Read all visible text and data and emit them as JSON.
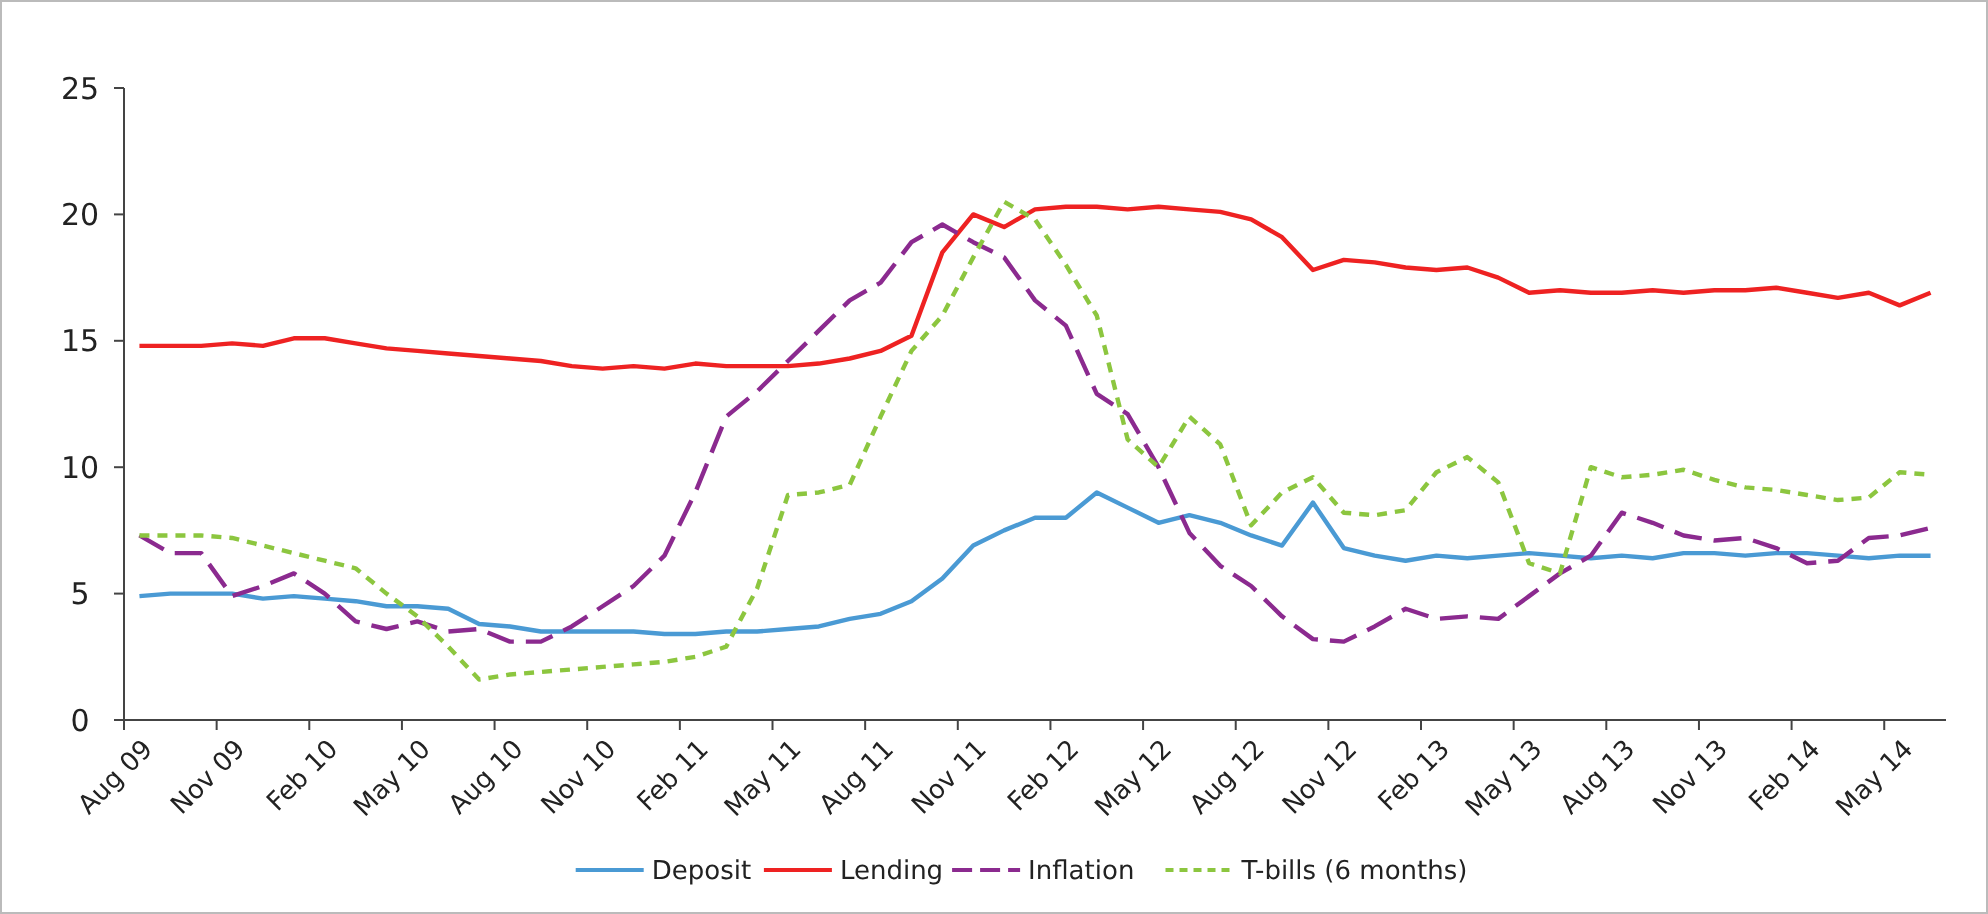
{
  "chart_data": {
    "type": "line",
    "categories": [
      "Aug 09",
      null,
      null,
      "Nov 09",
      null,
      null,
      "Feb 10",
      null,
      null,
      "May 10",
      null,
      null,
      "Aug 10",
      null,
      null,
      "Nov 10",
      null,
      null,
      "Feb 11",
      null,
      null,
      "May 11",
      null,
      null,
      "Aug 11",
      null,
      null,
      "Nov 11",
      null,
      null,
      "Feb 12",
      null,
      null,
      "May 12",
      null,
      null,
      "Aug 12",
      null,
      null,
      "Nov 12",
      null,
      null,
      "Feb 13",
      null,
      null,
      "May 13",
      null,
      null,
      "Aug 13",
      null,
      null,
      "Nov 13",
      null,
      null,
      "Feb 14",
      null,
      null,
      "May 14",
      null
    ],
    "series": [
      {
        "name": "Deposit",
        "color": "#4a9ad4",
        "line_style": "solid",
        "values": [
          4.9,
          5.0,
          5.0,
          5.0,
          4.8,
          4.9,
          4.8,
          4.7,
          4.5,
          4.5,
          4.4,
          3.8,
          3.7,
          3.5,
          3.5,
          3.5,
          3.5,
          3.4,
          3.4,
          3.5,
          3.5,
          3.6,
          3.7,
          4.0,
          4.2,
          4.7,
          5.6,
          6.9,
          7.5,
          8.0,
          8.0,
          9.0,
          8.4,
          7.8,
          8.1,
          7.8,
          7.3,
          6.9,
          8.6,
          6.8,
          6.5,
          6.3,
          6.5,
          6.4,
          6.5,
          6.6,
          6.5,
          6.4,
          6.5,
          6.4,
          6.6,
          6.6,
          6.5,
          6.6,
          6.6,
          6.5,
          6.4,
          6.5,
          6.5
        ]
      },
      {
        "name": "Lending",
        "color": "#ee2222",
        "line_style": "solid",
        "values": [
          14.8,
          14.8,
          14.8,
          14.9,
          14.8,
          15.1,
          15.1,
          14.9,
          14.7,
          14.6,
          14.5,
          14.4,
          14.3,
          14.2,
          14.0,
          13.9,
          14.0,
          13.9,
          14.1,
          14.0,
          14.0,
          14.0,
          14.1,
          14.3,
          14.6,
          15.2,
          18.5,
          20.0,
          19.5,
          20.2,
          20.3,
          20.3,
          20.2,
          20.3,
          20.2,
          20.1,
          19.8,
          19.1,
          17.8,
          18.2,
          18.1,
          17.9,
          17.8,
          17.9,
          17.5,
          16.9,
          17.0,
          16.9,
          16.9,
          17.0,
          16.9,
          17.0,
          17.0,
          17.1,
          16.9,
          16.7,
          16.9,
          16.4,
          16.9
        ]
      },
      {
        "name": "Inflation",
        "color": "#8b2a8f",
        "line_style": "dashed",
        "values": [
          7.3,
          6.6,
          6.6,
          4.9,
          5.3,
          5.8,
          5.0,
          3.9,
          3.6,
          3.9,
          3.5,
          3.6,
          3.1,
          3.1,
          3.7,
          4.5,
          5.3,
          6.5,
          9.0,
          12.0,
          13.0,
          14.2,
          15.4,
          16.6,
          17.3,
          18.9,
          19.6,
          18.9,
          18.3,
          16.6,
          15.6,
          12.9,
          12.1,
          10.0,
          7.4,
          6.1,
          5.3,
          4.1,
          3.2,
          3.1,
          3.7,
          4.4,
          4.0,
          4.1,
          4.0,
          4.9,
          5.8,
          6.5,
          8.2,
          7.8,
          7.3,
          7.1,
          7.2,
          6.8,
          6.2,
          6.3,
          7.2,
          7.3,
          7.6
        ]
      },
      {
        "name": "T-bills (6 months)",
        "color": "#8cc63f",
        "line_style": "dotted",
        "values": [
          7.3,
          7.3,
          7.3,
          7.2,
          6.9,
          6.6,
          6.3,
          6.0,
          5.0,
          4.1,
          2.9,
          1.6,
          1.8,
          1.9,
          2.0,
          2.1,
          2.2,
          2.3,
          2.5,
          2.9,
          5.2,
          8.9,
          9.0,
          9.3,
          12.0,
          14.6,
          16.0,
          18.3,
          20.5,
          19.8,
          18.0,
          16.0,
          11.1,
          10.0,
          12.0,
          10.9,
          7.7,
          9.0,
          9.6,
          8.2,
          8.1,
          8.3,
          9.8,
          10.4,
          9.4,
          6.2,
          5.8,
          10.0,
          9.6,
          9.7,
          9.9,
          9.5,
          9.2,
          9.1,
          8.9,
          8.7,
          8.8,
          9.8,
          9.7
        ]
      }
    ],
    "ylim": [
      0,
      25
    ],
    "yticks": [
      0,
      5,
      10,
      15,
      20,
      25
    ],
    "grid": false,
    "legend": "bottom",
    "marker": "none"
  }
}
